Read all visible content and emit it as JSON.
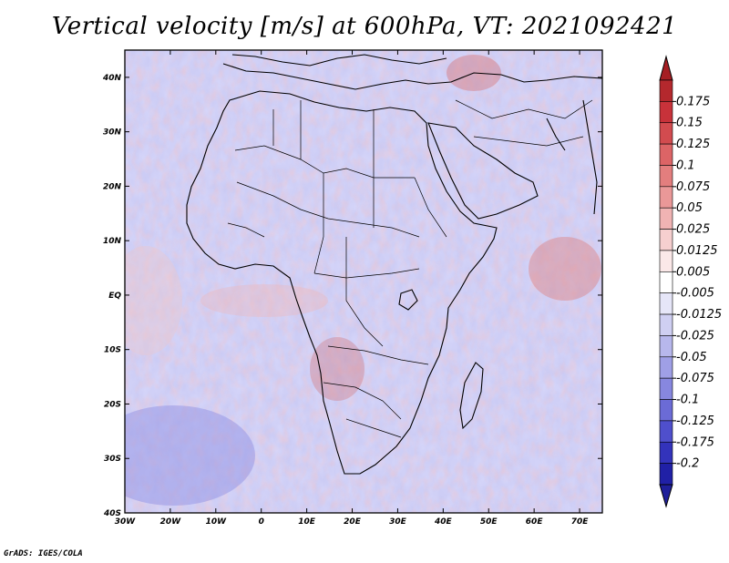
{
  "title": "Vertical velocity [m/s] at 600hPa, VT: 2021092421",
  "credit": "GrADS: IGES/COLA",
  "map": {
    "variable": "Vertical velocity",
    "units": "m/s",
    "level": "600hPa",
    "valid_time": "2021092421",
    "lon_range": [
      -30,
      75
    ],
    "lat_range": [
      -40,
      45
    ],
    "lat_labels": [
      "40N",
      "30N",
      "20N",
      "10N",
      "EQ",
      "10S",
      "20S",
      "30S",
      "40S"
    ],
    "lon_labels": [
      "30W",
      "20W",
      "10W",
      "0",
      "10E",
      "20E",
      "30E",
      "40E",
      "50E",
      "60E",
      "70E"
    ]
  },
  "colorbar": {
    "labels": [
      "0.175",
      "0.15",
      "0.125",
      "0.1",
      "0.075",
      "0.05",
      "0.025",
      "0.0125",
      "0.005",
      "-0.005",
      "-0.0125",
      "-0.025",
      "-0.05",
      "-0.075",
      "-0.1",
      "-0.125",
      "-0.175",
      "-0.2"
    ],
    "colors": [
      "#b4282d",
      "#c8323a",
      "#d24b4f",
      "#dc6466",
      "#e37e7e",
      "#ea9898",
      "#f0b3b3",
      "#f6cfcf",
      "#fbe8e8",
      "#ffffff",
      "#e6e6f8",
      "#cfcff2",
      "#b7b7ec",
      "#9f9fe6",
      "#8787df",
      "#6b6bd6",
      "#4f4fcc",
      "#3333bb",
      "#2020a6"
    ],
    "top_color": "#a51e23",
    "bottom_color": "#1f1f9a"
  }
}
